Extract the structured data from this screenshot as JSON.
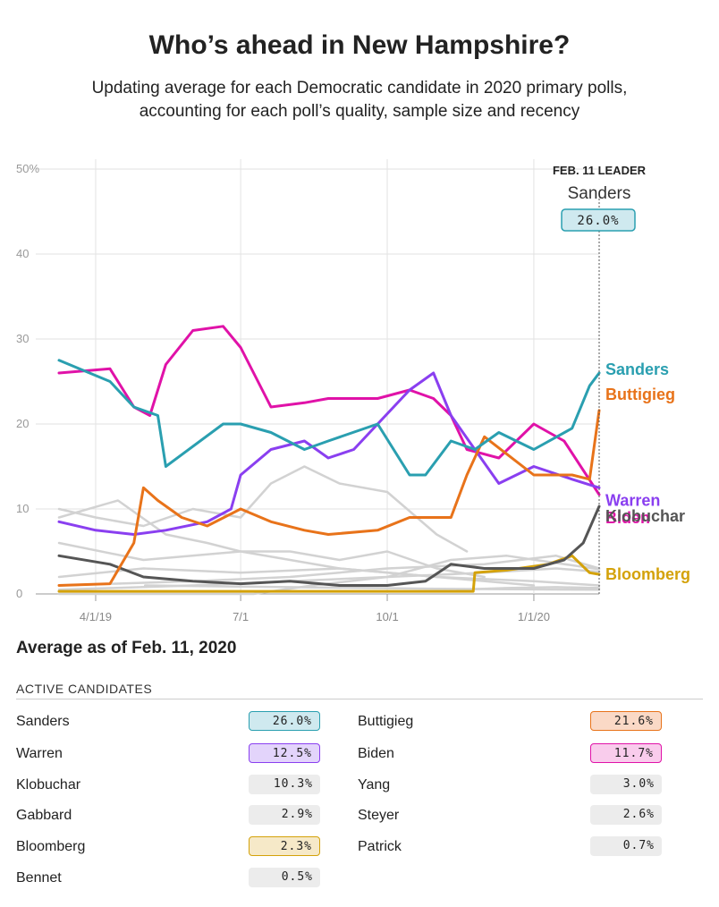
{
  "header": {
    "title": "Who’s ahead in New Hampshire?",
    "subtitle_line1": "Updating average for each Democratic candidate in 2020 primary polls,",
    "subtitle_line2": "accounting for each poll’s quality, sample size and recency"
  },
  "chart_data": {
    "type": "line",
    "ylim": [
      0,
      50
    ],
    "yticks": [
      0,
      10,
      20,
      30,
      40,
      50
    ],
    "ytick_labels": [
      "0",
      "10",
      "20",
      "30",
      "40",
      "50%"
    ],
    "xlim": [
      "2019-03-09",
      "2020-02-11"
    ],
    "xticks": [
      "2019-04-01",
      "2019-07-01",
      "2019-10-01",
      "2020-01-01"
    ],
    "xtick_labels": [
      "4/1/19",
      "7/1",
      "10/1",
      "1/1/20"
    ],
    "grid": true,
    "leader": {
      "heading": "FEB. 11 LEADER",
      "name": "Sanders",
      "value": "26.0%",
      "date": "2020-02-11"
    },
    "colors": {
      "Sanders": "#2a9fb0",
      "Buttigieg": "#e8731a",
      "Warren": "#8a3ff0",
      "Biden": "#e012a8",
      "Klobuchar": "#555555",
      "Bloomberg": "#d4a20a",
      "other": "#d2d2d2"
    },
    "labeled_series": [
      "Sanders",
      "Buttigieg",
      "Warren",
      "Biden",
      "Klobuchar",
      "Bloomberg"
    ],
    "series": [
      {
        "name": "Sanders",
        "x": [
          "2019-03-09",
          "2019-04-10",
          "2019-04-25",
          "2019-05-10",
          "2019-05-15",
          "2019-06-20",
          "2019-07-01",
          "2019-07-20",
          "2019-08-10",
          "2019-08-25",
          "2019-09-25",
          "2019-10-15",
          "2019-10-25",
          "2019-11-10",
          "2019-11-25",
          "2019-12-10",
          "2020-01-01",
          "2020-01-25",
          "2020-02-05",
          "2020-02-11"
        ],
        "values": [
          27.5,
          25,
          22,
          21,
          15,
          20,
          20,
          19,
          17,
          18,
          20,
          14,
          14,
          18,
          17,
          19,
          17,
          19.5,
          24.5,
          26.0
        ]
      },
      {
        "name": "Buttigieg",
        "x": [
          "2019-03-09",
          "2019-04-10",
          "2019-04-25",
          "2019-05-01",
          "2019-05-10",
          "2019-05-25",
          "2019-06-10",
          "2019-07-01",
          "2019-07-20",
          "2019-08-10",
          "2019-08-25",
          "2019-09-25",
          "2019-10-15",
          "2019-11-10",
          "2019-11-20",
          "2019-12-01",
          "2020-01-01",
          "2020-01-25",
          "2020-02-05",
          "2020-02-11"
        ],
        "values": [
          1,
          1.2,
          6,
          12.5,
          11,
          9,
          8,
          10,
          8.5,
          7.5,
          7,
          7.5,
          9,
          9,
          14,
          18.5,
          14,
          14,
          13.5,
          21.6
        ]
      },
      {
        "name": "Warren",
        "x": [
          "2019-03-09",
          "2019-04-01",
          "2019-04-25",
          "2019-05-15",
          "2019-06-10",
          "2019-06-25",
          "2019-07-01",
          "2019-07-20",
          "2019-08-10",
          "2019-08-25",
          "2019-09-10",
          "2019-09-25",
          "2019-10-15",
          "2019-10-30",
          "2019-11-10",
          "2019-11-25",
          "2019-12-10",
          "2020-01-01",
          "2020-01-25",
          "2020-02-11"
        ],
        "values": [
          8.5,
          7.5,
          7,
          7.5,
          8.5,
          10,
          14,
          17,
          18,
          16,
          17,
          20,
          24,
          26,
          21,
          17,
          13,
          15,
          13.5,
          12.5
        ]
      },
      {
        "name": "Biden",
        "x": [
          "2019-03-09",
          "2019-04-10",
          "2019-04-25",
          "2019-05-05",
          "2019-05-15",
          "2019-06-01",
          "2019-06-20",
          "2019-07-01",
          "2019-07-20",
          "2019-08-10",
          "2019-08-25",
          "2019-09-25",
          "2019-10-15",
          "2019-10-30",
          "2019-11-10",
          "2019-11-20",
          "2019-12-10",
          "2020-01-01",
          "2020-01-20",
          "2020-02-11"
        ],
        "values": [
          26,
          26.5,
          22,
          21,
          27,
          31,
          31.5,
          29,
          22,
          22.5,
          23,
          23,
          24,
          23,
          21,
          17,
          16,
          20,
          18,
          11.7
        ]
      },
      {
        "name": "Klobuchar",
        "x": [
          "2019-03-09",
          "2019-04-10",
          "2019-05-01",
          "2019-06-01",
          "2019-07-01",
          "2019-08-01",
          "2019-09-01",
          "2019-10-01",
          "2019-10-25",
          "2019-11-10",
          "2019-12-01",
          "2020-01-01",
          "2020-01-20",
          "2020-02-01",
          "2020-02-11"
        ],
        "values": [
          4.5,
          3.5,
          2,
          1.5,
          1.2,
          1.5,
          1,
          1,
          1.5,
          3.5,
          3,
          3,
          4,
          6,
          10.3
        ]
      },
      {
        "name": "Bloomberg",
        "x": [
          "2019-03-09",
          "2019-11-24",
          "2019-11-25",
          "2019-12-15",
          "2020-01-10",
          "2020-01-25",
          "2020-02-05",
          "2020-02-11"
        ],
        "values": [
          0.3,
          0.3,
          2.5,
          2.8,
          3.5,
          4.5,
          2.5,
          2.3
        ]
      },
      {
        "name": "Yang",
        "x": [
          "2019-03-09",
          "2019-06-01",
          "2019-08-01",
          "2019-10-01",
          "2019-12-01",
          "2020-01-15",
          "2020-02-11"
        ],
        "values": [
          1,
          1.5,
          2,
          3,
          3.5,
          4.5,
          3.0
        ]
      },
      {
        "name": "Gabbard",
        "x": [
          "2019-03-09",
          "2019-06-01",
          "2019-08-01",
          "2019-10-01",
          "2019-11-10",
          "2019-12-15",
          "2020-02-11"
        ],
        "values": [
          0.5,
          1,
          1.5,
          2,
          4,
          4.5,
          2.9
        ]
      },
      {
        "name": "Steyer",
        "x": [
          "2019-03-09",
          "2019-07-09",
          "2019-08-15",
          "2019-10-01",
          "2019-12-01",
          "2020-01-15",
          "2020-02-11"
        ],
        "values": [
          0,
          0,
          1,
          2,
          2.5,
          3,
          2.6
        ]
      },
      {
        "name": "Patrick",
        "x": [
          "2019-11-14",
          "2019-12-15",
          "2020-01-15",
          "2020-02-11"
        ],
        "values": [
          0.5,
          0.7,
          0.8,
          0.7
        ]
      },
      {
        "name": "Bennet",
        "x": [
          "2019-05-02",
          "2019-08-01",
          "2019-11-01",
          "2020-02-11"
        ],
        "values": [
          1,
          0.8,
          0.6,
          0.5
        ]
      },
      {
        "name": "",
        "x": [
          "2019-03-09",
          "2019-04-01",
          "2019-05-01",
          "2019-06-01",
          "2019-07-01",
          "2019-07-20",
          "2019-08-10",
          "2019-09-01",
          "2019-10-01",
          "2019-11-01",
          "2019-11-20"
        ],
        "values": [
          10,
          9,
          8,
          10,
          9,
          13,
          15,
          13,
          12,
          7,
          5
        ]
      },
      {
        "name": "",
        "x": [
          "2019-03-09",
          "2019-04-15",
          "2019-05-15",
          "2019-06-10",
          "2019-07-01",
          "2019-08-01",
          "2019-09-01",
          "2019-10-01",
          "2019-11-01",
          "2019-12-01"
        ],
        "values": [
          9,
          11,
          7,
          6,
          5,
          5,
          4,
          5,
          3,
          2
        ]
      },
      {
        "name": "",
        "x": [
          "2019-03-09",
          "2019-05-01",
          "2019-07-01",
          "2019-09-01",
          "2019-11-01",
          "2020-01-01"
        ],
        "values": [
          6,
          4,
          5,
          3,
          2,
          1
        ]
      },
      {
        "name": "",
        "x": [
          "2019-03-09",
          "2019-05-01",
          "2019-07-01",
          "2019-09-01",
          "2019-11-01",
          "2020-01-01",
          "2020-02-11"
        ],
        "values": [
          2,
          3,
          2.5,
          3,
          2,
          1.5,
          1
        ]
      }
    ]
  },
  "table": {
    "heading": "Average as of Feb. 11, 2020",
    "subheading": "ACTIVE CANDIDATES",
    "rows": [
      {
        "name": "Sanders",
        "value": "26.0%",
        "color": "#2a9fb0",
        "fill": "#cfe9ef"
      },
      {
        "name": "Buttigieg",
        "value": "21.6%",
        "color": "#e8731a",
        "fill": "#fad9c6"
      },
      {
        "name": "Warren",
        "value": "12.5%",
        "color": "#8a3ff0",
        "fill": "#e3d4fb"
      },
      {
        "name": "Biden",
        "value": "11.7%",
        "color": "#e012a8",
        "fill": "#f9ccec"
      },
      {
        "name": "Klobuchar",
        "value": "10.3%",
        "color": "",
        "fill": "#ececec"
      },
      {
        "name": "Yang",
        "value": "3.0%",
        "color": "",
        "fill": "#ececec"
      },
      {
        "name": "Gabbard",
        "value": "2.9%",
        "color": "",
        "fill": "#ececec"
      },
      {
        "name": "Steyer",
        "value": "2.6%",
        "color": "",
        "fill": "#ececec"
      },
      {
        "name": "Bloomberg",
        "value": "2.3%",
        "color": "#d4a20a",
        "fill": "#f6e9c8"
      },
      {
        "name": "Patrick",
        "value": "0.7%",
        "color": "",
        "fill": "#ececec"
      },
      {
        "name": "Bennet",
        "value": "0.5%",
        "color": "",
        "fill": "#ececec"
      }
    ]
  }
}
